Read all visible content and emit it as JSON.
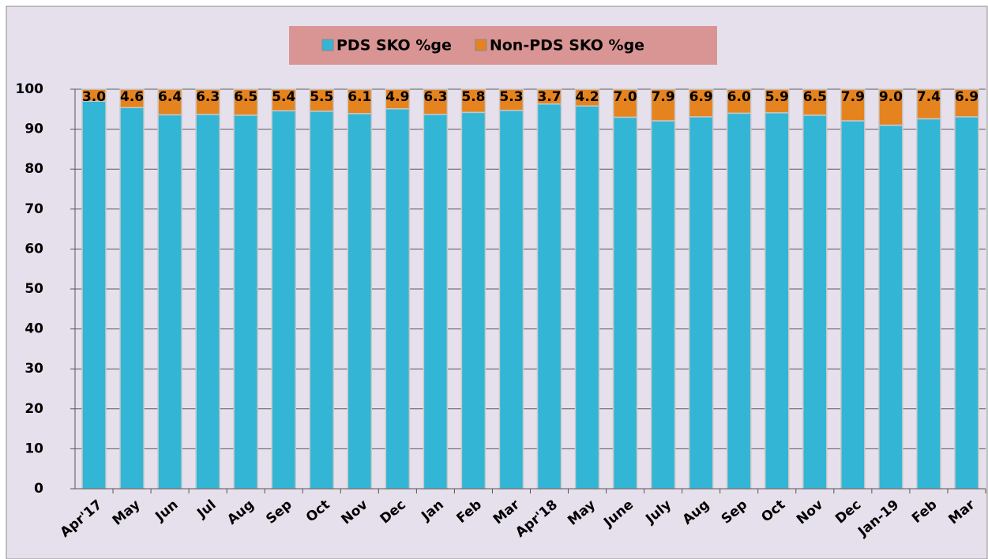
{
  "chart_data": {
    "type": "stacked_bar",
    "categories": [
      "Apr'17",
      "May",
      "Jun",
      "Jul",
      "Aug",
      "Sep",
      "Oct",
      "Nov",
      "Dec",
      "Jan",
      "Feb",
      "Mar",
      "Apr'18",
      "May",
      "June",
      "July",
      "Aug",
      "Sep",
      "Oct",
      "Nov",
      "Dec",
      "Jan-19",
      "Feb",
      "Mar"
    ],
    "series": [
      {
        "name": "PDS SKO %ge",
        "color": "#33b5d5",
        "values": [
          97.0,
          95.4,
          93.6,
          93.7,
          93.5,
          94.6,
          94.5,
          93.9,
          95.1,
          93.7,
          94.2,
          94.7,
          96.3,
          95.8,
          93.0,
          92.1,
          93.1,
          94.0,
          94.1,
          93.5,
          92.1,
          91.0,
          92.6,
          93.1
        ]
      },
      {
        "name": "Non-PDS SKO  %ge",
        "color": "#e5831f",
        "values": [
          3.0,
          4.6,
          6.4,
          6.3,
          6.5,
          5.4,
          5.5,
          6.1,
          4.9,
          6.3,
          5.8,
          5.3,
          3.7,
          4.2,
          7.0,
          7.9,
          6.9,
          6.0,
          5.9,
          6.5,
          7.9,
          9.0,
          7.4,
          6.9
        ],
        "value_labels": [
          "3.0",
          "4.6",
          "6.4",
          "6.3",
          "6.5",
          "5.4",
          "5.5",
          "6.1",
          "4.9",
          "6.3",
          "5.8",
          "5.3",
          "3.7",
          "4.2",
          "7.0",
          "7.9",
          "6.9",
          "6.0",
          "5.9",
          "6.5",
          "7.9",
          "9.0",
          "7.4",
          "6.9"
        ]
      }
    ],
    "ylim": [
      0,
      100
    ],
    "yticks": [
      0,
      10,
      20,
      30,
      40,
      50,
      60,
      70,
      80,
      90,
      100
    ],
    "grid": true,
    "legend": "top"
  }
}
